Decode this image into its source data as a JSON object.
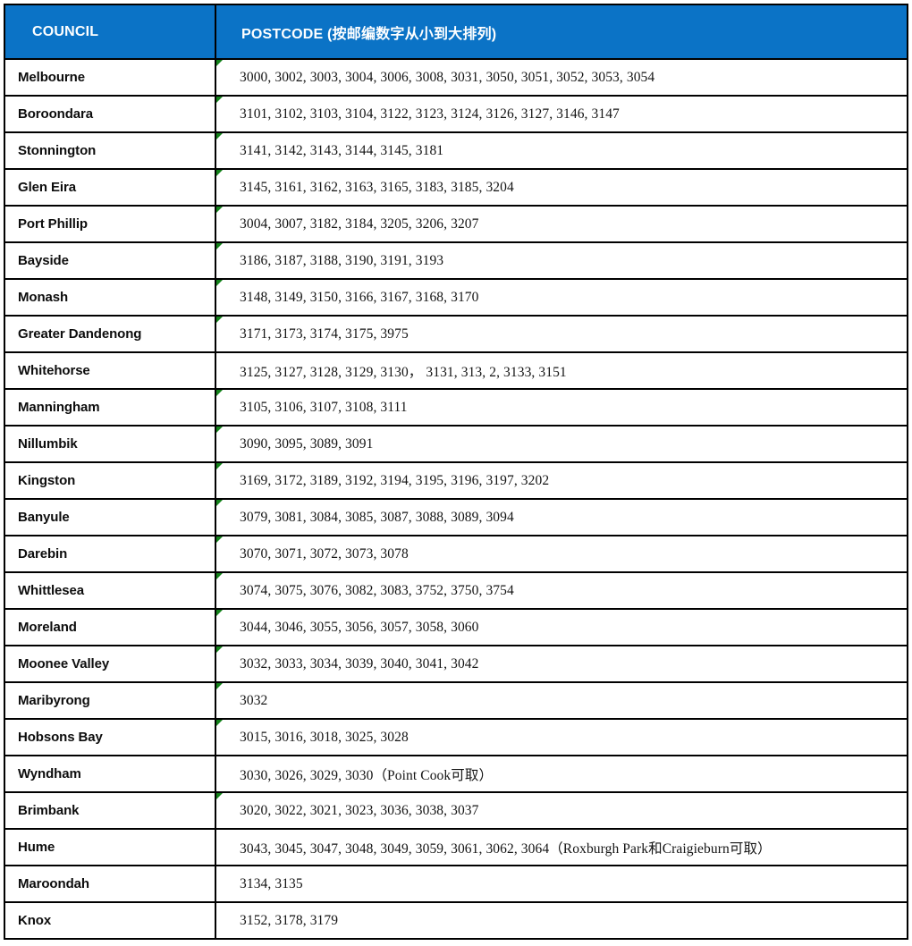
{
  "colors": {
    "header_bg": "#0b73c6",
    "header_text": "#ffffff",
    "border": "#000000",
    "marker_green": "#15831c",
    "body_text": "#141414"
  },
  "icons": {
    "cell_marker": "green-triangle"
  },
  "table": {
    "columns": [
      {
        "label": "COUNCIL"
      },
      {
        "label": "POSTCODE (按邮编数字从小到大排列)"
      }
    ],
    "rows": [
      {
        "council": "Melbourne",
        "postcodes": "3000, 3002, 3003, 3004, 3006, 3008, 3031, 3050, 3051, 3052, 3053, 3054",
        "has_marker": true
      },
      {
        "council": "Boroondara",
        "postcodes": "3101, 3102, 3103, 3104, 3122, 3123, 3124, 3126, 3127, 3146, 3147",
        "has_marker": true
      },
      {
        "council": "Stonnington",
        "postcodes": "3141, 3142, 3143, 3144, 3145, 3181",
        "has_marker": true
      },
      {
        "council": "Glen Eira",
        "postcodes": "3145, 3161, 3162, 3163, 3165, 3183, 3185, 3204",
        "has_marker": true
      },
      {
        "council": "Port Phillip",
        "postcodes": "3004, 3007, 3182, 3184, 3205, 3206, 3207",
        "has_marker": true
      },
      {
        "council": "Bayside",
        "postcodes": "3186, 3187, 3188, 3190, 3191, 3193",
        "has_marker": true
      },
      {
        "council": "Monash",
        "postcodes": "3148, 3149, 3150, 3166, 3167, 3168, 3170",
        "has_marker": true
      },
      {
        "council": "Greater Dandenong",
        "postcodes": "3171, 3173, 3174, 3175, 3975",
        "has_marker": true
      },
      {
        "council": "Whitehorse",
        "postcodes": "3125, 3127, 3128, 3129, 3130， 3131, 313, 2, 3133, 3151",
        "has_marker": false
      },
      {
        "council": "Manningham",
        "postcodes": "3105, 3106, 3107, 3108, 3111",
        "has_marker": true
      },
      {
        "council": "Nillumbik",
        "postcodes": "3090, 3095, 3089, 3091",
        "has_marker": true
      },
      {
        "council": "Kingston",
        "postcodes": "3169, 3172, 3189, 3192, 3194, 3195, 3196, 3197, 3202",
        "has_marker": true
      },
      {
        "council": "Banyule",
        "postcodes": "3079, 3081, 3084, 3085, 3087, 3088, 3089, 3094",
        "has_marker": true
      },
      {
        "council": "Darebin",
        "postcodes": "3070, 3071, 3072, 3073, 3078",
        "has_marker": true
      },
      {
        "council": "Whittlesea",
        "postcodes": "3074, 3075, 3076, 3082, 3083, 3752, 3750, 3754",
        "has_marker": true
      },
      {
        "council": "Moreland",
        "postcodes": "3044, 3046, 3055, 3056, 3057, 3058, 3060",
        "has_marker": true
      },
      {
        "council": "Moonee Valley",
        "postcodes": "3032, 3033, 3034, 3039, 3040, 3041, 3042",
        "has_marker": true
      },
      {
        "council": "Maribyrong",
        "postcodes": "3032",
        "has_marker": true
      },
      {
        "council": "Hobsons Bay",
        "postcodes": "3015, 3016, 3018, 3025, 3028",
        "has_marker": true
      },
      {
        "council": "Wyndham",
        "postcodes": "3030, 3026, 3029, 3030（Point Cook可取）",
        "has_marker": false
      },
      {
        "council": "Brimbank",
        "postcodes": "3020, 3022, 3021, 3023, 3036, 3038, 3037",
        "has_marker": true
      },
      {
        "council": "Hume",
        "postcodes": "3043, 3045, 3047, 3048, 3049, 3059, 3061, 3062, 3064（Roxburgh Park和Craigieburn可取）",
        "has_marker": false
      },
      {
        "council": "Maroondah",
        "postcodes": "3134, 3135",
        "has_marker": false
      },
      {
        "council": "Knox",
        "postcodes": "3152, 3178, 3179",
        "has_marker": false
      }
    ]
  }
}
